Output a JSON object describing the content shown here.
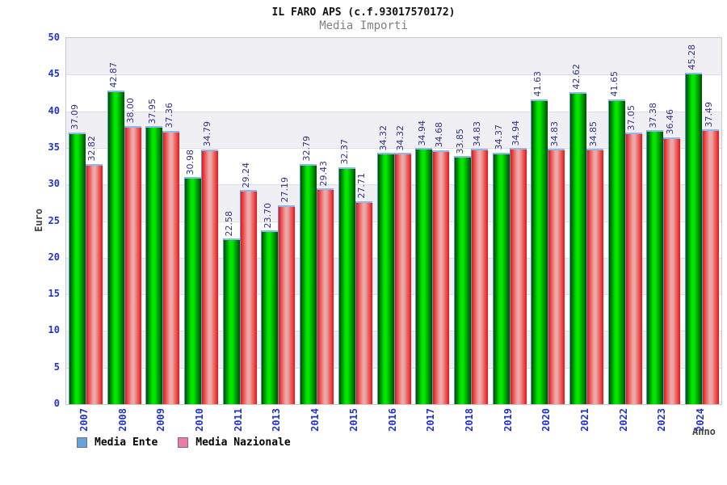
{
  "title": "IL FARO APS (c.f.93017570172)",
  "subtitle": "Media Importi",
  "chart_data": {
    "type": "bar",
    "categories": [
      "2007",
      "2008",
      "2009",
      "2010",
      "2011",
      "2013",
      "2014",
      "2015",
      "2016",
      "2017",
      "2018",
      "2019",
      "2020",
      "2021",
      "2022",
      "2023",
      "2024"
    ],
    "series": [
      {
        "name": "Media Ente",
        "values": [
          37.09,
          42.87,
          37.95,
          30.98,
          22.58,
          23.7,
          32.79,
          32.37,
          34.32,
          34.94,
          33.85,
          34.37,
          41.63,
          42.62,
          41.65,
          37.38,
          45.28
        ]
      },
      {
        "name": "Media Nazionale",
        "values": [
          32.82,
          38.0,
          37.36,
          34.79,
          29.24,
          27.19,
          29.43,
          27.71,
          34.32,
          34.68,
          34.83,
          34.94,
          34.83,
          34.85,
          37.05,
          36.46,
          37.49
        ]
      }
    ],
    "ylabel": "Euro",
    "xlabel": "Anno",
    "ylim": [
      0,
      50
    ],
    "ytick_step": 5,
    "value_label_format": "2-decimals",
    "grid": "horizontal-bands",
    "legend_position": "bottom-left",
    "legend": [
      {
        "label": "Media Ente",
        "swatch": "#68a2dc"
      },
      {
        "label": "Media Nazionale",
        "swatch": "#ee7ca8"
      }
    ]
  },
  "colors": {
    "title": "#111111",
    "subtitle": "#808080",
    "ente_edge": "#004d00",
    "ente_mid": "#00e800",
    "naz_edge": "#e81414",
    "naz_mid": "#eda8a8",
    "bar_cap": "#8cb8ea",
    "bar_left_edge": "#5599ee",
    "tick_label": "#2233cc",
    "value_label": "#333388",
    "axis_title": "#444444",
    "band_gray": "#f0f0f4",
    "band_white": "#ffffff",
    "plot_border": "#c9c9c9"
  }
}
